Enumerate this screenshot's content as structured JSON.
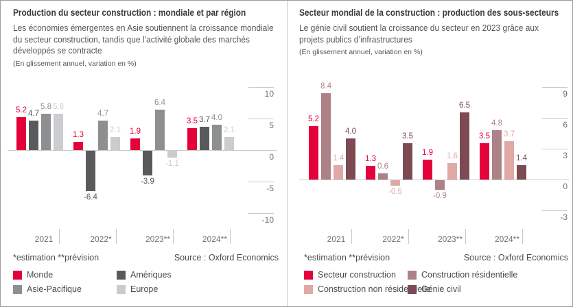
{
  "panels": [
    {
      "title": "Production du secteur construction : mondiale et par région",
      "subtitle": "Les économies émergentes en Asie soutiennent la croissance mondiale du secteur construction, tandis que l’activité globale des marchés développés se contracte",
      "unit_note": "(En glissement annuel, variation en %)",
      "footnote": "*estimation  **prévision",
      "source": "Source : Oxford Economics",
      "chart_data": {
        "type": "bar",
        "categories": [
          "2021",
          "2022*",
          "2023**",
          "2024**"
        ],
        "series": [
          {
            "name": "Monde",
            "color": "#e4003a",
            "values": [
              5.2,
              1.3,
              1.9,
              3.5
            ]
          },
          {
            "name": "Amériques",
            "color": "#595a5c",
            "values": [
              4.7,
              -6.4,
              -3.9,
              3.7
            ]
          },
          {
            "name": "Asie-Pacifique",
            "color": "#8e8f91",
            "values": [
              5.8,
              4.7,
              6.4,
              4.0
            ]
          },
          {
            "name": "Europe",
            "color": "#cbcccd",
            "values": [
              5.8,
              2.1,
              -1.1,
              2.1
            ]
          }
        ],
        "ylim": [
          -10,
          10
        ],
        "yticks": [
          10,
          5,
          0,
          -5,
          -10
        ],
        "grid": "off",
        "legend_position": "bottom",
        "value_labels": "on, one decimal, colored like series"
      }
    },
    {
      "title": "Secteur mondial de la construction : production des sous-secteurs",
      "subtitle": "Le génie civil soutient la croissance du secteur en 2023 grâce aux projets publics d’infrastructures",
      "unit_note": "(En glissement annuel, variation en %)",
      "footnote": "*estimation  **prévision",
      "source": "Source : Oxford Economics",
      "chart_data": {
        "type": "bar",
        "categories": [
          "2021",
          "2022*",
          "2023**",
          "2024**"
        ],
        "series": [
          {
            "name": "Secteur construction",
            "color": "#e4003a",
            "values": [
              5.2,
              1.3,
              1.9,
              3.5
            ]
          },
          {
            "name": "Construction résidentielle",
            "color": "#ac8287",
            "values": [
              8.4,
              0.6,
              -0.9,
              4.8
            ]
          },
          {
            "name": "Construction non résidentielle",
            "color": "#e0a9a6",
            "values": [
              1.4,
              -0.5,
              1.6,
              3.7
            ]
          },
          {
            "name": "Génie civil",
            "color": "#7d4a54",
            "values": [
              4.0,
              3.5,
              6.5,
              1.4
            ]
          }
        ],
        "ylim": [
          -3,
          9
        ],
        "yticks": [
          9,
          6,
          3,
          0,
          -3
        ],
        "grid": "off",
        "legend_position": "bottom",
        "value_labels": "on, one decimal, colored like series"
      }
    }
  ],
  "colors": {
    "accent_red": "#e4003a",
    "axis": "#c9c9c9",
    "tick_text": "#6f7072",
    "title_text": "#3b3b3c",
    "body_text": "#55565a"
  }
}
